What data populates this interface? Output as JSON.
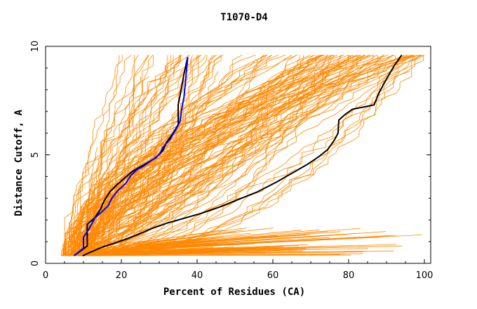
{
  "chart_data": {
    "type": "line",
    "title": "T1070-D4",
    "xlabel": "Percent of Residues (CA)",
    "ylabel": "Distance Cutoff, A",
    "xlim": [
      0,
      100
    ],
    "ylim": [
      0,
      10
    ],
    "x_ticks": [
      {
        "value": 0,
        "label": "0"
      },
      {
        "value": 20,
        "label": "20"
      },
      {
        "value": 40,
        "label": "40"
      },
      {
        "value": 60,
        "label": "60"
      },
      {
        "value": 80,
        "label": "80"
      },
      {
        "value": 100,
        "label": "100"
      }
    ],
    "y_ticks": [
      {
        "value": 0,
        "label": "0"
      },
      {
        "value": 5,
        "label": "5"
      },
      {
        "value": 10,
        "label": "10"
      }
    ],
    "grid": false,
    "colors": {
      "background_models": "#ff8800",
      "highlight_black": "#000000",
      "highlight_blue": "#0000ff"
    },
    "series": [
      {
        "color": "#000000",
        "points": [
          [
            9.8,
            0.35
          ],
          [
            11,
            0.45
          ],
          [
            13,
            0.6
          ],
          [
            15,
            0.75
          ],
          [
            18,
            0.92
          ],
          [
            21,
            1.1
          ],
          [
            24,
            1.3
          ],
          [
            28,
            1.6
          ],
          [
            32,
            1.85
          ],
          [
            36,
            2.05
          ],
          [
            41,
            2.3
          ],
          [
            46,
            2.6
          ],
          [
            51,
            2.95
          ],
          [
            56,
            3.3
          ],
          [
            61,
            3.75
          ],
          [
            65,
            4.15
          ],
          [
            69,
            4.55
          ],
          [
            72,
            4.9
          ],
          [
            74.5,
            5.25
          ],
          [
            76.3,
            5.7
          ],
          [
            77.2,
            6.0
          ],
          [
            77.4,
            6.6
          ],
          [
            79,
            6.85
          ],
          [
            81,
            7.1
          ],
          [
            86.7,
            7.3
          ],
          [
            88,
            7.85
          ],
          [
            90,
            8.5
          ],
          [
            92,
            9.1
          ],
          [
            94,
            9.6
          ]
        ]
      },
      {
        "color": "#000000",
        "points": [
          [
            7.5,
            0.35
          ],
          [
            9.5,
            0.6
          ],
          [
            11,
            0.8
          ],
          [
            11,
            1.8
          ],
          [
            13,
            2.1
          ],
          [
            14.5,
            2.5
          ],
          [
            15.5,
            2.9
          ],
          [
            17,
            3.3
          ],
          [
            19,
            3.65
          ],
          [
            21,
            3.95
          ],
          [
            23,
            4.25
          ],
          [
            25,
            4.45
          ],
          [
            27,
            4.65
          ],
          [
            29,
            4.85
          ],
          [
            31,
            5.2
          ],
          [
            32,
            5.6
          ],
          [
            33.5,
            5.95
          ],
          [
            35,
            6.4
          ],
          [
            35,
            7.3
          ],
          [
            36,
            8.2
          ],
          [
            36.5,
            8.7
          ],
          [
            37.5,
            9.5
          ]
        ]
      },
      {
        "color": "#0000ff",
        "points": [
          [
            7.5,
            0.35
          ],
          [
            10,
            0.7
          ],
          [
            10,
            1.2
          ],
          [
            11.5,
            1.6
          ],
          [
            13,
            2.1
          ],
          [
            15,
            2.4
          ],
          [
            16.5,
            2.65
          ],
          [
            17.5,
            3.0
          ],
          [
            19,
            3.35
          ],
          [
            21,
            3.65
          ],
          [
            22.5,
            4.05
          ],
          [
            24,
            4.3
          ],
          [
            26,
            4.5
          ],
          [
            28,
            4.75
          ],
          [
            30,
            5.0
          ],
          [
            31,
            5.35
          ],
          [
            33,
            5.75
          ],
          [
            34.5,
            6.2
          ],
          [
            35.5,
            6.55
          ],
          [
            36,
            7.2
          ],
          [
            36.5,
            7.6
          ],
          [
            37,
            8.5
          ],
          [
            37.5,
            9.5
          ]
        ]
      }
    ]
  }
}
